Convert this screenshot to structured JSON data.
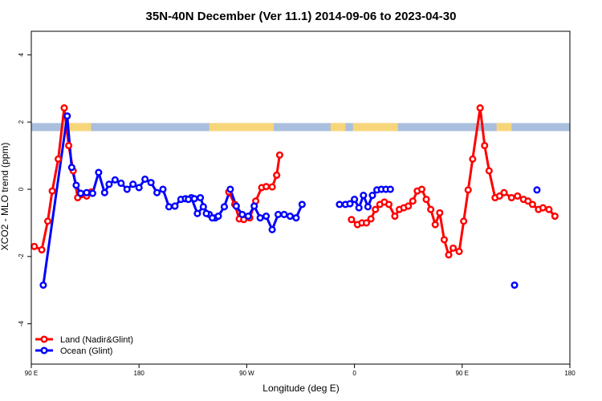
{
  "chart_data": {
    "type": "line",
    "title": "35N-40N December (Ver 11.1)   2014-09-06 to 2023-04-30",
    "xlabel": "Longitude (deg E)",
    "ylabel": "XCO2 - MLO trend (ppm)",
    "xlim": [
      90,
      450
    ],
    "ylim": [
      -5.2,
      4.7
    ],
    "x_ticks": [
      {
        "value": 90,
        "label": "90 E"
      },
      {
        "value": 180,
        "label": "180"
      },
      {
        "value": 270,
        "label": "90 W"
      },
      {
        "value": 360,
        "label": "0"
      },
      {
        "value": 450,
        "label": "90 E"
      },
      {
        "value": 540,
        "label": "180"
      }
    ],
    "x_ticks_visible": [
      {
        "value": 90,
        "label": "90 E"
      },
      {
        "value": 162,
        "label": "180"
      },
      {
        "value": 234,
        "label": "90 W"
      },
      {
        "value": 306,
        "label": "0"
      },
      {
        "value": 378,
        "label": "90 E"
      },
      {
        "value": 450,
        "label": "180"
      }
    ],
    "y_ticks": [
      -4,
      -2,
      0,
      2,
      4
    ],
    "band": {
      "y_from": 1.73,
      "y_to": 1.97,
      "land_color": "#f7d67a",
      "ocean_color": "#a9bfdd",
      "land_segments": [
        [
          111,
          130
        ],
        [
          209,
          252
        ],
        [
          290,
          300
        ],
        [
          305,
          335
        ],
        [
          401,
          411
        ]
      ]
    },
    "series": [
      {
        "name": "Land (Nadir&Glint)",
        "color": "#ff0000",
        "segments": [
          {
            "x": [
              92,
              97,
              101,
              104,
              108,
              112,
              115,
              118,
              121,
              127,
              130
            ],
            "y": [
              -1.7,
              -1.8,
              -0.95,
              -0.05,
              0.9,
              2.42,
              1.3,
              0.55,
              -0.25,
              -0.2,
              -0.08
            ]
          },
          {
            "x": [
              222,
              226,
              229,
              232,
              236,
              240,
              244,
              247,
              251,
              254
            ],
            "y": [
              -0.08,
              -0.45,
              -0.88,
              -0.9,
              -0.85,
              -0.35,
              0.05,
              0.08,
              0.07,
              0.42
            ]
          },
          {
            "x": [
              254,
              256
            ],
            "y": [
              0.42,
              1.02
            ]
          },
          {
            "x": [
              304,
              308,
              311,
              314,
              317,
              320,
              323,
              326,
              329,
              333,
              336,
              339,
              342,
              345,
              348,
              351,
              354,
              357,
              360,
              363,
              366,
              369,
              372,
              376,
              379,
              382,
              385,
              390,
              393,
              396,
              400,
              403,
              406,
              411,
              415,
              419,
              422,
              425,
              429,
              432,
              436,
              440
            ],
            "y": [
              -0.9,
              -1.05,
              -1.0,
              -1.0,
              -0.88,
              -0.6,
              -0.45,
              -0.38,
              -0.45,
              -0.8,
              -0.6,
              -0.55,
              -0.5,
              -0.35,
              -0.05,
              0.0,
              -0.3,
              -0.6,
              -1.05,
              -0.7,
              -1.5,
              -1.95,
              -1.75,
              -1.85,
              -0.95,
              -0.02,
              0.9,
              2.42,
              1.3,
              0.55,
              -0.25,
              -0.2,
              -0.1,
              -0.25,
              -0.2,
              -0.3,
              -0.35,
              -0.45,
              -0.6,
              -0.55,
              -0.6,
              -0.8
            ]
          }
        ]
      },
      {
        "name": "Ocean (Glint)",
        "color": "#0000ff",
        "segments": [
          {
            "x": [
              98,
              114,
              117,
              120,
              123,
              127,
              131,
              135,
              139,
              142,
              146,
              150,
              154,
              158,
              162,
              166,
              170,
              174,
              178,
              182,
              186,
              190,
              193,
              197,
              201,
              205,
              209,
              213
            ],
            "y": [
              -2.85,
              2.18,
              0.65,
              0.12,
              -0.12,
              -0.1,
              -0.12,
              0.5,
              -0.1,
              0.15,
              0.28,
              0.18,
              0.0,
              0.15,
              0.05,
              0.3,
              0.2,
              -0.1,
              0.0,
              -0.52,
              -0.5,
              -0.3,
              -0.28,
              -0.25,
              -0.72,
              -0.52,
              -0.75,
              -0.85
            ]
          },
          {
            "x": [
              195,
              199,
              203,
              207,
              211,
              215,
              219,
              223,
              227,
              231,
              235,
              239,
              243,
              247,
              251,
              255,
              259,
              263,
              267,
              271
            ],
            "y": [
              -0.3,
              -0.28,
              -0.25,
              -0.72,
              -0.85,
              -0.8,
              -0.52,
              0.0,
              -0.5,
              -0.75,
              -0.8,
              -0.5,
              -0.85,
              -0.8,
              -1.2,
              -0.75,
              -0.75,
              -0.8,
              -0.85,
              -0.45
            ]
          },
          {
            "x": [
              296,
              300,
              303,
              306,
              309,
              312,
              315,
              318,
              321,
              324,
              327,
              330
            ],
            "y": [
              -0.45,
              -0.45,
              -0.43,
              -0.3,
              -0.55,
              -0.18,
              -0.52,
              -0.18,
              -0.02,
              0.0,
              0.0,
              0.0
            ]
          }
        ]
      }
    ],
    "ocean_extra_points": [
      {
        "x": 413,
        "y": -2.85
      },
      {
        "x": 428,
        "y": -0.02
      }
    ],
    "legend": {
      "position": "bottom-left",
      "entries": [
        "Land (Nadir&Glint)",
        "Ocean (Glint)"
      ]
    }
  }
}
